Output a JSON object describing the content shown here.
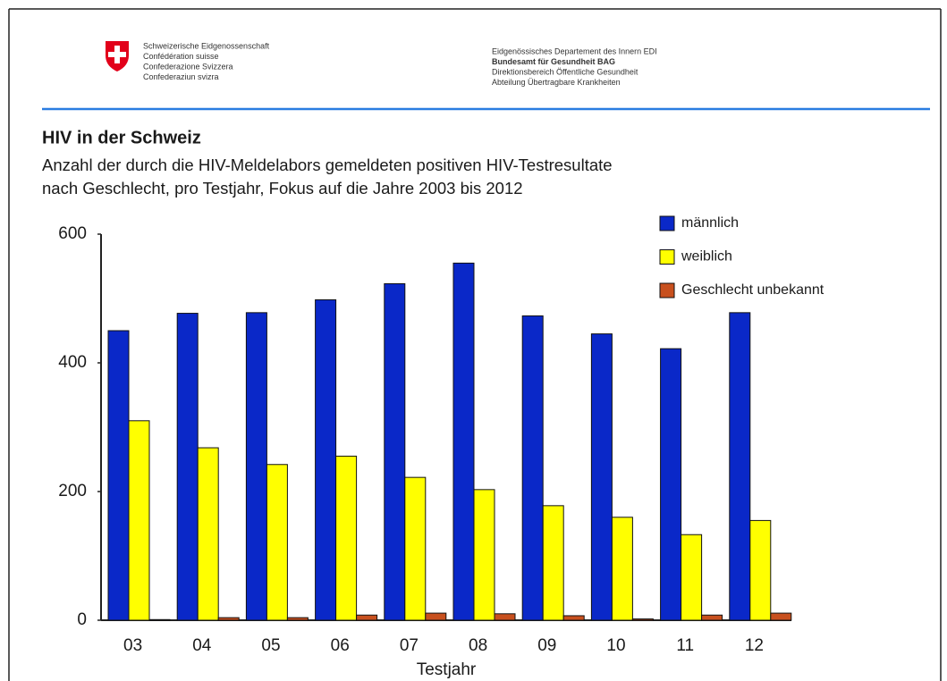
{
  "header": {
    "left": [
      "Schweizerische Eidgenossenschaft",
      "Confédération suisse",
      "Confederazione Svizzera",
      "Confederaziun svizra"
    ],
    "right": [
      "Eidgenössisches Departement des Innern EDI",
      "Bundesamt für Gesundheit BAG",
      "Direktionsbereich Öffentliche Gesundheit",
      "Abteilung Übertragbare Krankheiten"
    ]
  },
  "chart_data": {
    "type": "bar",
    "title": "HIV in der Schweiz",
    "subtitle": [
      "Anzahl der durch die HIV-Meldelabors gemeldeten positiven HIV-Testresultate",
      "nach Geschlecht, pro Testjahr, Fokus auf die Jahre 2003 bis 2012"
    ],
    "x_label": "Testjahr",
    "categories": [
      "03",
      "04",
      "05",
      "06",
      "07",
      "08",
      "09",
      "10",
      "11",
      "12"
    ],
    "series": [
      {
        "name": "männlich",
        "color": "#0a28c8",
        "values": [
          450,
          477,
          478,
          498,
          523,
          555,
          473,
          445,
          422,
          478
        ]
      },
      {
        "name": "weiblich",
        "color": "#ffff00",
        "values": [
          310,
          268,
          242,
          255,
          222,
          203,
          178,
          160,
          133,
          155
        ]
      },
      {
        "name": "Geschlecht unbekannt",
        "color": "#c8501e",
        "values": [
          1,
          4,
          4,
          8,
          11,
          10,
          7,
          2,
          8,
          11
        ]
      }
    ],
    "ylim": [
      0,
      600
    ],
    "yticks": [
      0,
      200,
      400,
      600
    ],
    "legend": "top-right"
  }
}
